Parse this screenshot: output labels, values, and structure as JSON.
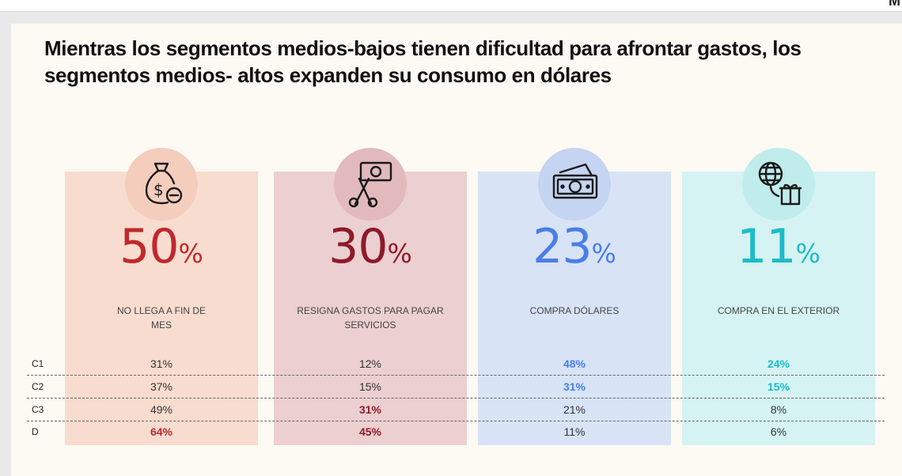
{
  "title": "Mientras los segmentos medios-bajos tienen dificultad para afrontar gastos, los segmentos medios- altos expanden su consumo en dólares",
  "segments": [
    "C1",
    "C2",
    "C3",
    "D"
  ],
  "cards": [
    {
      "icon": "money-bag-icon",
      "value": "50",
      "unit": "%",
      "label": "NO LLEGA A FIN DE MES",
      "color": "#c0282d",
      "bg": "#f8dccf",
      "circle": "#f5cdbd",
      "rows": [
        {
          "v": "31%",
          "hl": false
        },
        {
          "v": "37%",
          "hl": false
        },
        {
          "v": "49%",
          "hl": false
        },
        {
          "v": "64%",
          "hl": true
        }
      ]
    },
    {
      "icon": "scissors-money-icon",
      "value": "30",
      "unit": "%",
      "label": "RESIGNA GASTOS PARA PAGAR SERVICIOS",
      "color": "#8c1b2b",
      "bg": "#eccfd0",
      "circle": "#e2b9bc",
      "rows": [
        {
          "v": "12%",
          "hl": false
        },
        {
          "v": "15%",
          "hl": false
        },
        {
          "v": "31%",
          "hl": true
        },
        {
          "v": "45%",
          "hl": true
        }
      ]
    },
    {
      "icon": "dollar-bills-icon",
      "value": "23",
      "unit": "%",
      "label": "COMPRA DÓLARES",
      "color": "#4a7ee8",
      "bg": "#d8e3f6",
      "circle": "#c5d4f0",
      "rows": [
        {
          "v": "48%",
          "hl": true
        },
        {
          "v": "31%",
          "hl": true
        },
        {
          "v": "21%",
          "hl": false
        },
        {
          "v": "11%",
          "hl": false
        }
      ]
    },
    {
      "icon": "globe-gift-icon",
      "value": "11",
      "unit": "%",
      "label": "COMPRA EN EL EXTERIOR",
      "color": "#1bbcc8",
      "bg": "#d6f3f3",
      "circle": "#c0ecec",
      "rows": [
        {
          "v": "24%",
          "hl": true
        },
        {
          "v": "15%",
          "hl": true
        },
        {
          "v": "8%",
          "hl": false
        },
        {
          "v": "6%",
          "hl": false
        }
      ]
    }
  ]
}
